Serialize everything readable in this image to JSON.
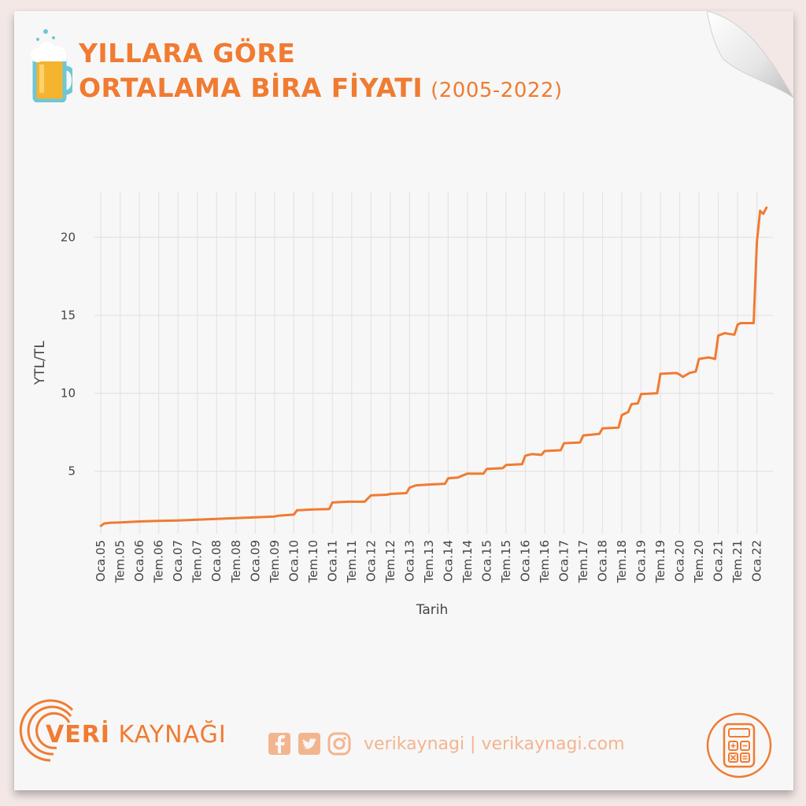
{
  "title": {
    "line1": "YILLARA GÖRE",
    "line2": "ORTALAMA BİRA FİYATI",
    "years": "(2005-2022)"
  },
  "footer": {
    "brand_bold": "VERİ",
    "brand_rest": " KAYNAĞI",
    "social_text": "verikaynagi | verikaynagi.com"
  },
  "icons": [
    "beer-mug-icon",
    "facebook-icon",
    "twitter-icon",
    "instagram-icon",
    "calculator-icon",
    "page-curl-icon",
    "veri-kaynagi-logo-icon"
  ],
  "colors": {
    "accent": "#f07b31",
    "line": "#f07b31",
    "grid": "#e4e4e4",
    "background": "#f7f7f7"
  },
  "chart_data": {
    "type": "line",
    "xlabel": "Tarih",
    "ylabel": "YTL/TL",
    "x_tick_labels": [
      "Oca.05",
      "Tem.05",
      "Oca.06",
      "Tem.06",
      "Oca.07",
      "Tem.07",
      "Oca.08",
      "Tem.08",
      "Oca.09",
      "Tem.09",
      "Oca.10",
      "Tem.10",
      "Oca.11",
      "Tem.11",
      "Oca.12",
      "Tem.12",
      "Oca.13",
      "Tem.13",
      "Oca.14",
      "Tem.14",
      "Oca.15",
      "Tem.15",
      "Oca.16",
      "Tem.16",
      "Oca.17",
      "Tem.17",
      "Oca.18",
      "Tem.18",
      "Oca.19",
      "Tem.19",
      "Oca.20",
      "Tem.20",
      "Oca.21",
      "Tem.21",
      "Oca.22"
    ],
    "y_ticks": [
      5,
      10,
      15,
      20
    ],
    "ylim": [
      1.0,
      22.9
    ],
    "xlim": [
      "2004-11",
      "2022-06"
    ],
    "grid": true,
    "series": [
      {
        "points": [
          [
            "2005-01",
            1.5
          ],
          [
            "2005-02",
            1.65
          ],
          [
            "2005-04",
            1.7
          ],
          [
            "2005-07",
            1.72
          ],
          [
            "2006-01",
            1.78
          ],
          [
            "2006-07",
            1.82
          ],
          [
            "2007-01",
            1.85
          ],
          [
            "2007-07",
            1.9
          ],
          [
            "2008-01",
            1.95
          ],
          [
            "2008-07",
            2.0
          ],
          [
            "2009-01",
            2.05
          ],
          [
            "2009-07",
            2.1
          ],
          [
            "2009-08",
            2.15
          ],
          [
            "2010-01",
            2.22
          ],
          [
            "2010-02",
            2.5
          ],
          [
            "2010-07",
            2.55
          ],
          [
            "2010-12",
            2.58
          ],
          [
            "2011-01",
            3.0
          ],
          [
            "2011-06",
            3.05
          ],
          [
            "2011-11",
            3.05
          ],
          [
            "2012-01",
            3.45
          ],
          [
            "2012-06",
            3.5
          ],
          [
            "2012-07",
            3.55
          ],
          [
            "2012-12",
            3.6
          ],
          [
            "2013-01",
            3.95
          ],
          [
            "2013-03",
            4.1
          ],
          [
            "2013-07",
            4.15
          ],
          [
            "2013-12",
            4.2
          ],
          [
            "2014-01",
            4.55
          ],
          [
            "2014-04",
            4.6
          ],
          [
            "2014-07",
            4.85
          ],
          [
            "2014-12",
            4.85
          ],
          [
            "2015-01",
            5.15
          ],
          [
            "2015-06",
            5.2
          ],
          [
            "2015-07",
            5.4
          ],
          [
            "2015-12",
            5.45
          ],
          [
            "2016-01",
            6.0
          ],
          [
            "2016-03",
            6.1
          ],
          [
            "2016-06",
            6.05
          ],
          [
            "2016-07",
            6.3
          ],
          [
            "2016-12",
            6.35
          ],
          [
            "2017-01",
            6.8
          ],
          [
            "2017-06",
            6.85
          ],
          [
            "2017-07",
            7.3
          ],
          [
            "2017-12",
            7.4
          ],
          [
            "2018-01",
            7.75
          ],
          [
            "2018-06",
            7.8
          ],
          [
            "2018-07",
            8.6
          ],
          [
            "2018-09",
            8.8
          ],
          [
            "2018-10",
            9.3
          ],
          [
            "2018-12",
            9.35
          ],
          [
            "2019-01",
            9.95
          ],
          [
            "2019-06",
            10.0
          ],
          [
            "2019-07",
            11.25
          ],
          [
            "2019-12",
            11.3
          ],
          [
            "2020-01",
            11.2
          ],
          [
            "2020-02",
            11.05
          ],
          [
            "2020-04",
            11.3
          ],
          [
            "2020-06",
            11.4
          ],
          [
            "2020-07",
            12.2
          ],
          [
            "2020-10",
            12.3
          ],
          [
            "2020-12",
            12.2
          ],
          [
            "2021-01",
            13.7
          ],
          [
            "2021-03",
            13.85
          ],
          [
            "2021-06",
            13.75
          ],
          [
            "2021-07",
            14.4
          ],
          [
            "2021-08",
            14.5
          ],
          [
            "2021-12",
            14.5
          ],
          [
            "2022-01",
            19.7
          ],
          [
            "2022-02",
            21.7
          ],
          [
            "2022-03",
            21.5
          ],
          [
            "2022-04",
            21.9
          ]
        ]
      }
    ]
  }
}
